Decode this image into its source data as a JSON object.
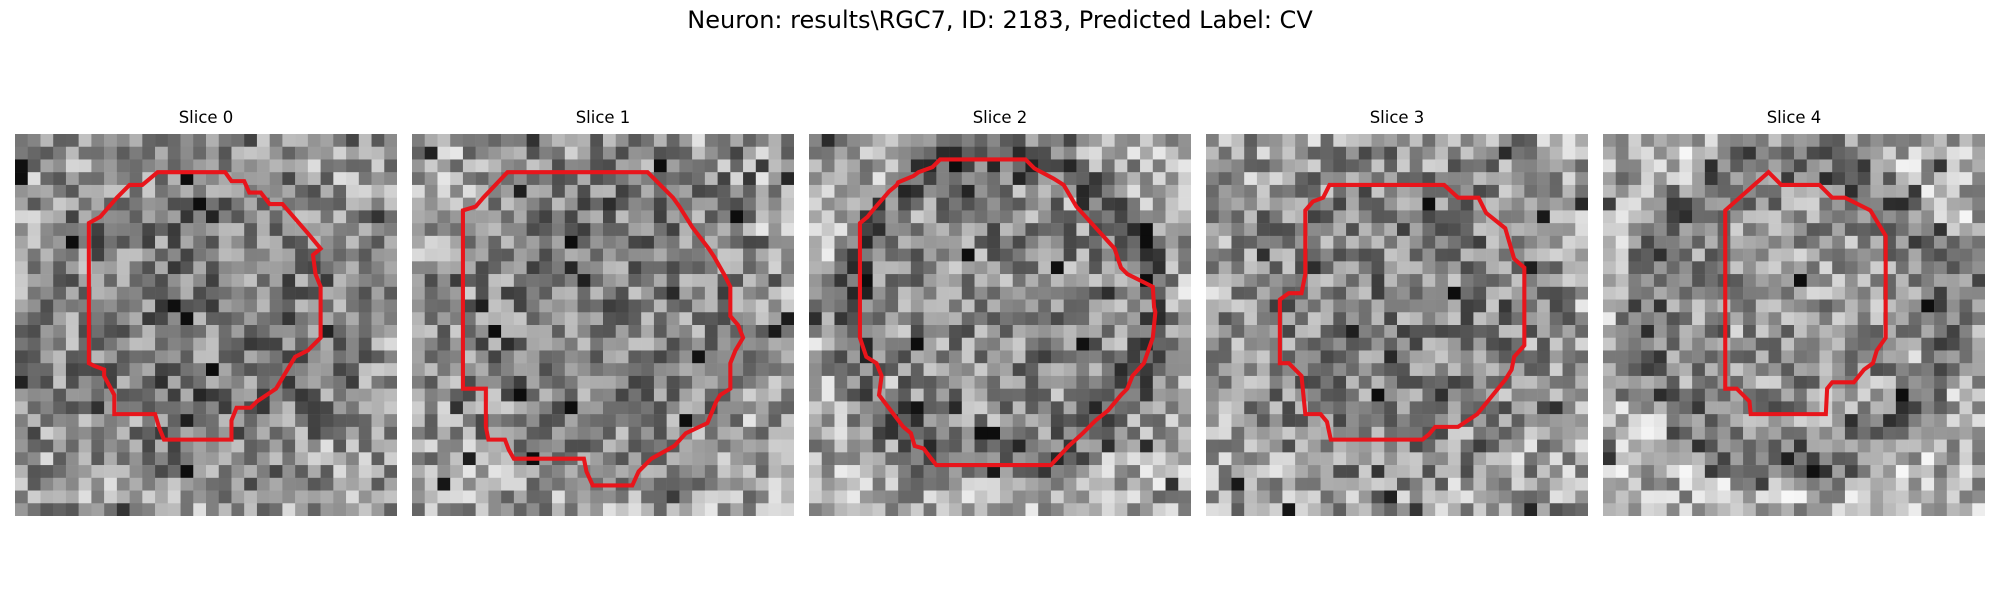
{
  "figure": {
    "title": "Neuron: results\\RGC7, ID: 2183, Predicted Label: CV",
    "contour_color": "#e8151b",
    "grid_size": 30,
    "panels": [
      {
        "title": "Slice 0",
        "seed": 11,
        "dark_ring": false,
        "tint": 0.52
      },
      {
        "title": "Slice 1",
        "seed": 23,
        "dark_ring": false,
        "tint": 0.55
      },
      {
        "title": "Slice 2",
        "seed": 37,
        "dark_ring": true,
        "tint": 0.58
      },
      {
        "title": "Slice 3",
        "seed": 41,
        "dark_ring": false,
        "tint": 0.55
      },
      {
        "title": "Slice 4",
        "seed": 53,
        "dark_ring": true,
        "tint": 0.62
      }
    ]
  }
}
